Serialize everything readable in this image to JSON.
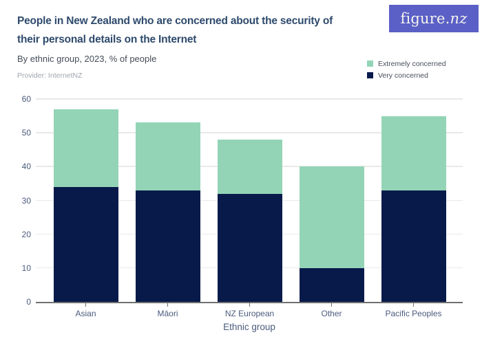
{
  "logo": {
    "brand": "figure.",
    "brand_suffix": "nz"
  },
  "header": {
    "title_lines": [
      "People in New Zealand who are concerned about the security of",
      "their personal details on the Internet"
    ],
    "subtitle": "By ethnic group, 2023, % of people",
    "provider": "Provider: InternetNZ"
  },
  "legend": {
    "items": [
      {
        "label": "Extremely concerned",
        "color": "#93d4b7"
      },
      {
        "label": "Very concerned",
        "color": "#071a4a"
      }
    ]
  },
  "chart_data": {
    "type": "bar",
    "stacked": true,
    "title": "People in New Zealand who are concerned about the security of their personal details on the Internet",
    "subtitle": "By ethnic group, 2023, % of people",
    "provider": "Provider: InternetNZ",
    "categories": [
      "Asian",
      "Māori",
      "NZ European",
      "Other",
      "Pacific Peoples"
    ],
    "series": [
      {
        "name": "Very concerned",
        "color": "#071a4a",
        "values": [
          34,
          33,
          32,
          10,
          33
        ]
      },
      {
        "name": "Extremely concerned",
        "color": "#93d4b7",
        "values": [
          23,
          20,
          16,
          30,
          22
        ]
      }
    ],
    "xlabel": "Ethnic group",
    "ylabel": "",
    "ylim": [
      0,
      60
    ],
    "yticks": [
      0,
      10,
      20,
      30,
      40,
      50,
      60
    ],
    "grid": true,
    "legend_position": "top-right"
  },
  "colors": {
    "accent_green": "#93d4b7",
    "accent_navy": "#071a4a",
    "title_text": "#2e4a6c",
    "axis_text": "#4a5a7c",
    "logo_background": "#5a60c6",
    "gridline": "#e9e9e9",
    "axis_line": "#6f6f6f"
  }
}
